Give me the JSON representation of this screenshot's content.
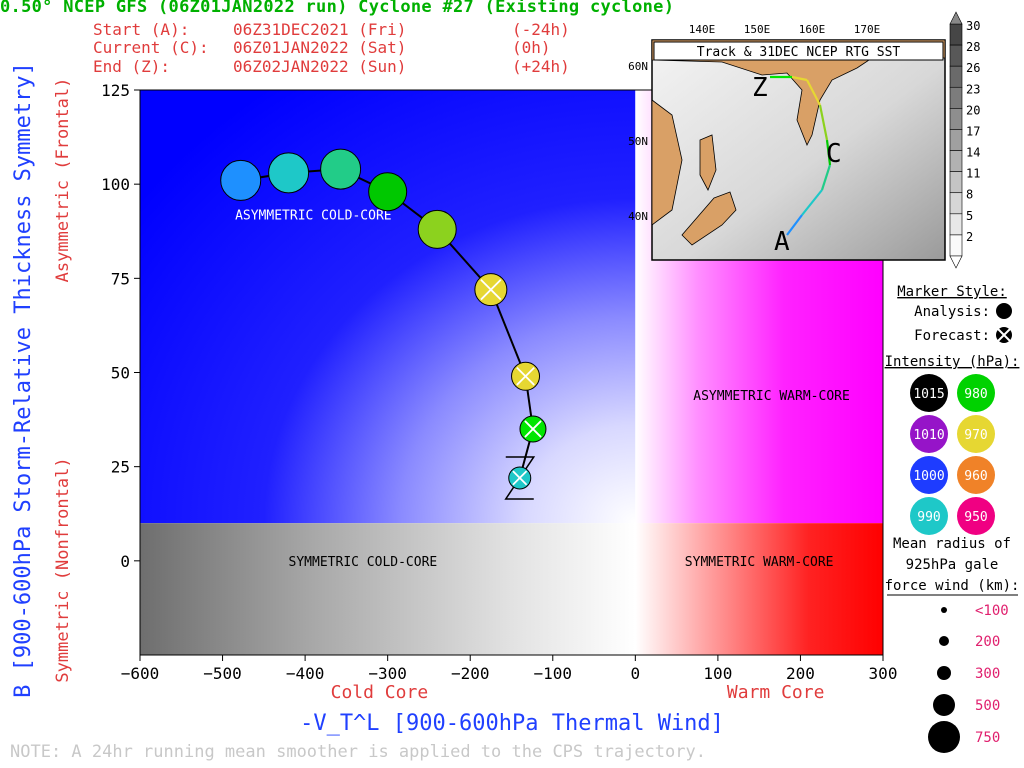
{
  "title": "0.50° NCEP GFS (06Z01JAN2022 run) Cyclone #27 (Existing cyclone)",
  "header": {
    "start": {
      "label": "Start (A):",
      "time": "06Z31DEC2021 (Fri)",
      "offset": "(-24h)"
    },
    "current": {
      "label": "Current (C):",
      "time": "06Z01JAN2022 (Sat)",
      "offset": "(0h)"
    },
    "end": {
      "label": "End (Z):",
      "time": "06Z02JAN2022 (Sun)",
      "offset": "(+24h)"
    }
  },
  "chart_data": {
    "type": "scatter",
    "xlabel": "-V_T^L [900-600hPa Thermal Wind]",
    "ylabel": "B [900-600hPa Storm-Relative Thickness Symmetry]",
    "x_sublabels": {
      "left": "Cold Core",
      "right": "Warm Core"
    },
    "y_sublabels": {
      "top": "Asymmetric (Frontal)",
      "bottom": "Symmetric (Nonfrontal)"
    },
    "xlim": [
      -600,
      300
    ],
    "ylim": [
      -25,
      125
    ],
    "xticks": [
      "-600",
      "-500",
      "-400",
      "-300",
      "-200",
      "-100",
      "0",
      "100",
      "200",
      "300"
    ],
    "yticks": [
      "0",
      "25",
      "50",
      "75",
      "100",
      "125"
    ],
    "quadrants": {
      "asym_cold": "ASYMMETRIC COLD-CORE",
      "asym_warm": "ASYMMETRIC WARM-CORE",
      "sym_cold": "SYMMETRIC COLD-CORE",
      "sym_warm": "SYMMETRIC WARM-CORE"
    },
    "track_labels": {
      "start": "A",
      "end": "Z"
    },
    "points": [
      {
        "x": -478,
        "y": 101,
        "style": "analysis",
        "color": "#1e90ff"
      },
      {
        "x": -420,
        "y": 103,
        "style": "analysis",
        "color": "#1ec8c8"
      },
      {
        "x": -357,
        "y": 104,
        "style": "analysis",
        "color": "#22cc88"
      },
      {
        "x": -300,
        "y": 98,
        "style": "analysis",
        "color": "#00c800"
      },
      {
        "x": -240,
        "y": 88,
        "style": "analysis",
        "color": "#8cd21e"
      },
      {
        "x": -175,
        "y": 72,
        "style": "forecast",
        "color": "#e6d732"
      },
      {
        "x": -133,
        "y": 49,
        "style": "forecast",
        "color": "#e6d732"
      },
      {
        "x": -124,
        "y": 35,
        "style": "forecast",
        "color": "#00e600"
      },
      {
        "x": -140,
        "y": 22,
        "style": "forecast",
        "color": "#1ec8c8"
      }
    ]
  },
  "inset_map": {
    "title": "Track & 31DEC NCEP RTG SST",
    "lon_labels": [
      "140E",
      "150E",
      "160E",
      "170E"
    ],
    "lat_labels": [
      "60N",
      "50N",
      "40N"
    ],
    "track_labels": {
      "start": "A",
      "current": "C",
      "end": "Z"
    },
    "sst_scale": [
      "30",
      "28",
      "26",
      "23",
      "20",
      "17",
      "14",
      "11",
      "8",
      "5",
      "2"
    ]
  },
  "legend": {
    "marker_title": "Marker Style:",
    "analysis_label": "Analysis:",
    "forecast_label": "Forecast:",
    "intensity_title": "Intensity (hPa):",
    "intensity": [
      {
        "value": "1015",
        "color": "#000000",
        "text": "#ffffff"
      },
      {
        "value": "980",
        "color": "#00d200",
        "text": "#ffffff"
      },
      {
        "value": "1010",
        "color": "#9614c8",
        "text": "#ffffff"
      },
      {
        "value": "970",
        "color": "#e6d732",
        "text": "#ffffff"
      },
      {
        "value": "1000",
        "color": "#1e3cff",
        "text": "#ffffff"
      },
      {
        "value": "960",
        "color": "#f08228",
        "text": "#ffffff"
      },
      {
        "value": "990",
        "color": "#1ec8c8",
        "text": "#ffffff"
      },
      {
        "value": "950",
        "color": "#f00082",
        "text": "#ffffff"
      }
    ],
    "radius_title_1": "Mean radius of",
    "radius_title_2": "925hPa gale",
    "radius_title_3": "force wind (km):",
    "radii": [
      "<100",
      "200",
      "300",
      "500",
      "750"
    ]
  },
  "note": "NOTE:  A 24hr running mean smoother is applied to the CPS trajectory."
}
